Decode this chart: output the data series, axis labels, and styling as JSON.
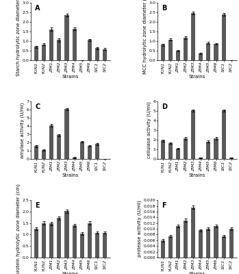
{
  "strains": [
    "YUN1",
    "YUN2",
    "ZIM1",
    "ZIM2",
    "ZIM3",
    "ZIM4",
    "ZIM5",
    "ZIM6",
    "SIC1",
    "SIC2"
  ],
  "panel_A": {
    "title": "A",
    "ylabel": "Starch hydrolytic zone diameter (cm)",
    "values": [
      0.7,
      0.82,
      1.62,
      1.05,
      2.35,
      1.63,
      0.0,
      1.05,
      0.62,
      0.58
    ],
    "errors": [
      0.05,
      0.05,
      0.1,
      0.08,
      0.08,
      0.08,
      0.0,
      0.07,
      0.06,
      0.05
    ],
    "ylim": [
      0,
      3.0
    ],
    "yticks": [
      0,
      0.5,
      1.0,
      1.5,
      2.0,
      2.5,
      3.0
    ]
  },
  "panel_B": {
    "title": "B",
    "ylabel": "MCC hydrolytic zone diameter (cm)",
    "values": [
      0.8,
      1.08,
      0.5,
      1.18,
      2.45,
      0.35,
      0.9,
      0.85,
      2.38,
      0.0
    ],
    "errors": [
      0.05,
      0.06,
      0.04,
      0.07,
      0.07,
      0.04,
      0.06,
      0.05,
      0.07,
      0.0
    ],
    "ylim": [
      0,
      3.0
    ],
    "yticks": [
      0,
      0.5,
      1.0,
      1.5,
      2.0,
      2.5,
      3.0
    ]
  },
  "panel_C": {
    "title": "C",
    "ylabel": "amylase activity (U/ml)",
    "values": [
      1.55,
      1.1,
      4.1,
      2.9,
      6.05,
      0.15,
      2.1,
      1.55,
      1.8,
      0.0
    ],
    "errors": [
      0.1,
      0.08,
      0.15,
      0.12,
      0.15,
      0.05,
      0.1,
      0.08,
      0.1,
      0.0
    ],
    "ylim": [
      0,
      7
    ],
    "yticks": [
      0,
      1,
      2,
      3,
      4,
      5,
      6,
      7
    ]
  },
  "panel_D": {
    "title": "D",
    "ylabel": "cellulase activity (U/ml)",
    "values": [
      1.9,
      1.65,
      1.05,
      2.15,
      5.05,
      0.12,
      1.8,
      2.15,
      5.05,
      0.12
    ],
    "errors": [
      0.1,
      0.08,
      0.07,
      0.12,
      0.12,
      0.03,
      0.1,
      0.12,
      0.12,
      0.03
    ],
    "ylim": [
      0,
      6
    ],
    "yticks": [
      0,
      1,
      2,
      3,
      4,
      5,
      6
    ]
  },
  "panel_E": {
    "title": "E",
    "ylabel": "protein hydrolytic zone diameter (cm)",
    "values": [
      1.25,
      1.5,
      1.48,
      1.72,
      2.02,
      1.4,
      1.05,
      1.5,
      1.08,
      1.08
    ],
    "errors": [
      0.06,
      0.08,
      0.07,
      0.08,
      0.08,
      0.07,
      0.06,
      0.08,
      0.05,
      0.05
    ],
    "ylim": [
      0,
      2.5
    ],
    "yticks": [
      0,
      0.5,
      1.0,
      1.5,
      2.0,
      2.5
    ]
  },
  "panel_F": {
    "title": "F",
    "ylabel": "protease activity (U/ml)",
    "values": [
      0.006,
      0.0075,
      0.011,
      0.013,
      0.0175,
      0.0095,
      0.01,
      0.011,
      0.0075,
      0.01
    ],
    "errors": [
      0.0004,
      0.0004,
      0.0005,
      0.0005,
      0.0006,
      0.0004,
      0.0005,
      0.0005,
      0.0003,
      0.0005
    ],
    "ylim": [
      0,
      0.02
    ],
    "yticks": [
      0,
      0.002,
      0.004,
      0.006,
      0.008,
      0.01,
      0.012,
      0.014,
      0.016,
      0.018,
      0.02
    ]
  },
  "bar_color": "#595959",
  "xlabel": "Strains",
  "title_fontsize": 7,
  "label_fontsize": 5,
  "tick_fontsize": 4.5,
  "ylabel_fontsize": 5
}
